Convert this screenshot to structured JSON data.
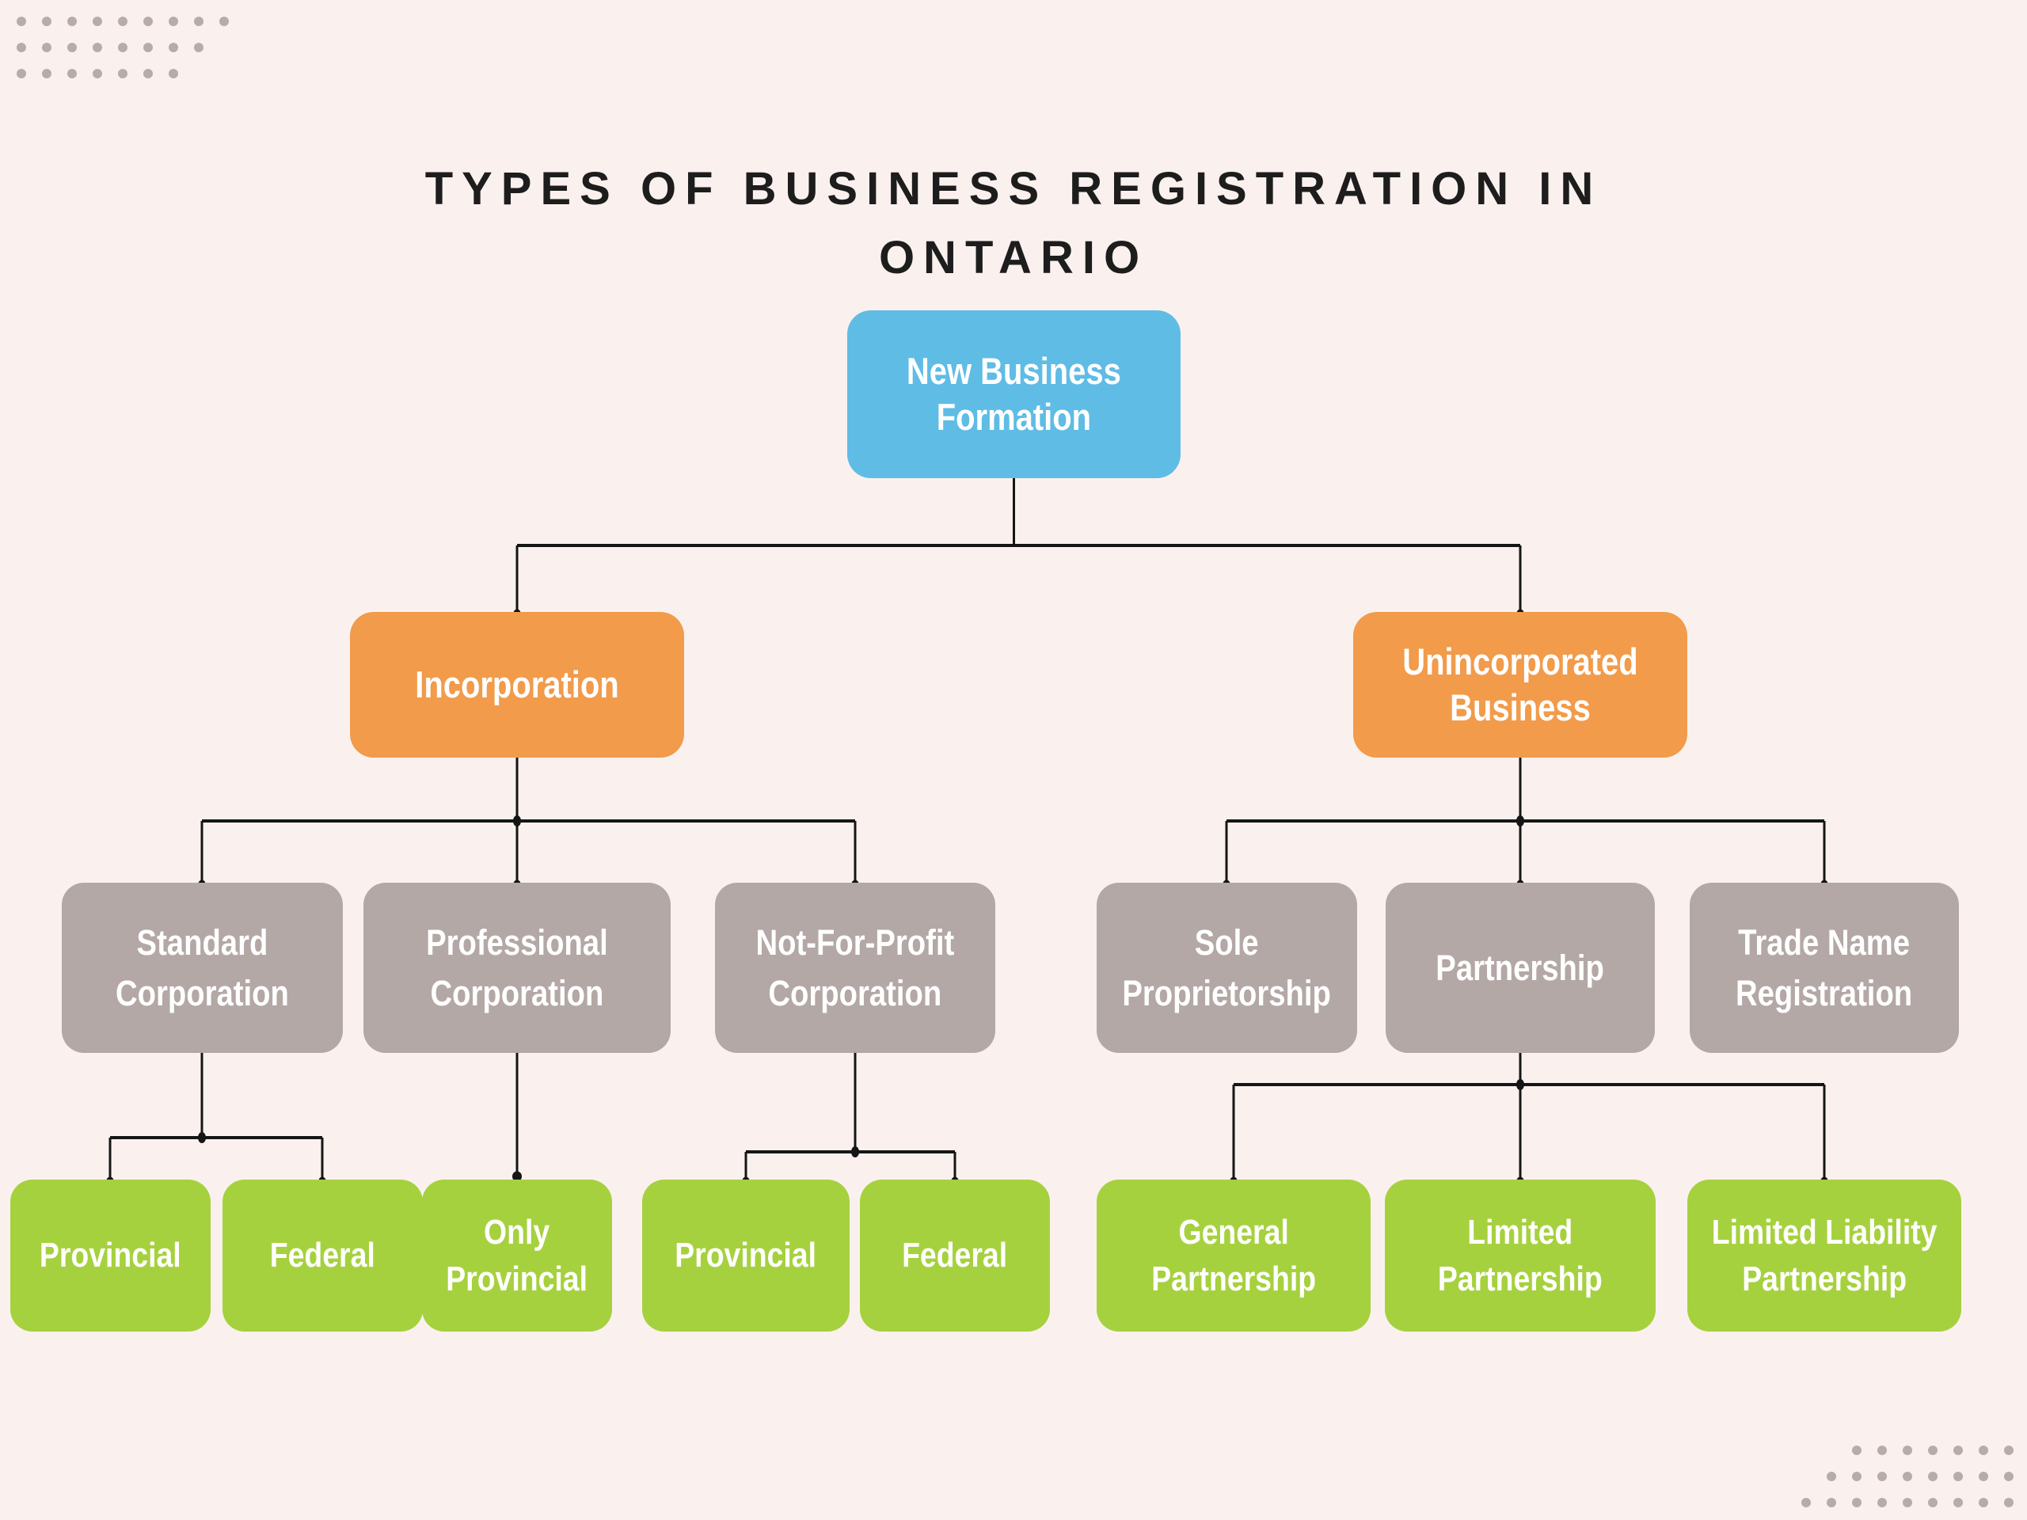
{
  "title": "TYPES OF BUSINESS REGISTRATION IN\nONTARIO",
  "colors": {
    "background": "#faf1ee",
    "root": "#5fbce5",
    "branch": "#f19b4b",
    "category": "#b3a8a5",
    "leaf": "#a6d13e",
    "line": "#151515",
    "title_text": "#1d1d1d",
    "node_text": "#ffffff",
    "deco_dot": "#b8abaa"
  },
  "nodes": {
    "root": {
      "label": "New Business\nFormation"
    },
    "incorporation": {
      "label": "Incorporation"
    },
    "unincorporated": {
      "label": "Unincorporated\nBusiness"
    },
    "standard_corporation": {
      "label": "Standard\nCorporation"
    },
    "professional_corporation": {
      "label": "Professional\nCorporation"
    },
    "not_for_profit_corporation": {
      "label": "Not-For-Profit\nCorporation"
    },
    "sole_proprietorship": {
      "label": "Sole\nProprietorship"
    },
    "partnership": {
      "label": "Partnership"
    },
    "trade_name_registration": {
      "label": "Trade Name\nRegistration"
    },
    "standard_provincial": {
      "label": "Provincial"
    },
    "standard_federal": {
      "label": "Federal"
    },
    "only_provincial": {
      "label": "Only\nProvincial"
    },
    "nfp_provincial": {
      "label": "Provincial"
    },
    "nfp_federal": {
      "label": "Federal"
    },
    "general_partnership": {
      "label": "General\nPartnership"
    },
    "limited_partnership": {
      "label": "Limited\nPartnership"
    },
    "limited_liability_partnership": {
      "label": "Limited Liability\nPartnership"
    }
  },
  "edges": [
    [
      "root",
      "incorporation"
    ],
    [
      "root",
      "unincorporated"
    ],
    [
      "incorporation",
      "standard_corporation"
    ],
    [
      "incorporation",
      "professional_corporation"
    ],
    [
      "incorporation",
      "not_for_profit_corporation"
    ],
    [
      "unincorporated",
      "sole_proprietorship"
    ],
    [
      "unincorporated",
      "partnership"
    ],
    [
      "unincorporated",
      "trade_name_registration"
    ],
    [
      "standard_corporation",
      "standard_provincial"
    ],
    [
      "standard_corporation",
      "standard_federal"
    ],
    [
      "professional_corporation",
      "only_provincial"
    ],
    [
      "not_for_profit_corporation",
      "nfp_provincial"
    ],
    [
      "not_for_profit_corporation",
      "nfp_federal"
    ],
    [
      "partnership",
      "general_partnership"
    ],
    [
      "partnership",
      "limited_partnership"
    ],
    [
      "partnership",
      "limited_liability_partnership"
    ]
  ],
  "decorations": {
    "top_left_rows": [
      9,
      8,
      7
    ],
    "bottom_right_rows": [
      7,
      8,
      9
    ]
  }
}
